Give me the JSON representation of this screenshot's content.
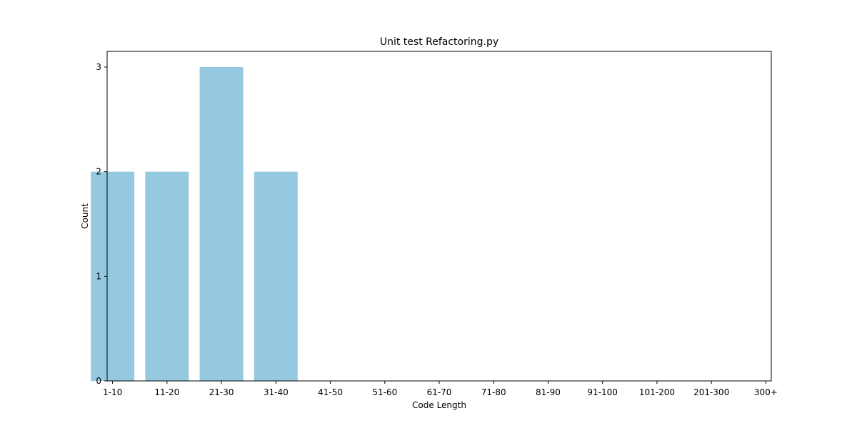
{
  "chart_data": {
    "type": "bar",
    "title": "Unit test Refactoring.py",
    "xlabel": "Code Length",
    "ylabel": "Count",
    "categories": [
      "1-10",
      "11-20",
      "21-30",
      "31-40",
      "41-50",
      "51-60",
      "61-70",
      "71-80",
      "81-90",
      "91-100",
      "101-200",
      "201-300",
      "300+"
    ],
    "values": [
      2,
      2,
      3,
      2,
      0,
      0,
      0,
      0,
      0,
      0,
      0,
      0,
      0
    ],
    "yticks": [
      0,
      1,
      2,
      3
    ],
    "ylim": [
      0,
      3.15
    ],
    "grid": false,
    "legend": "none",
    "bar_color": "#95c9e0"
  }
}
